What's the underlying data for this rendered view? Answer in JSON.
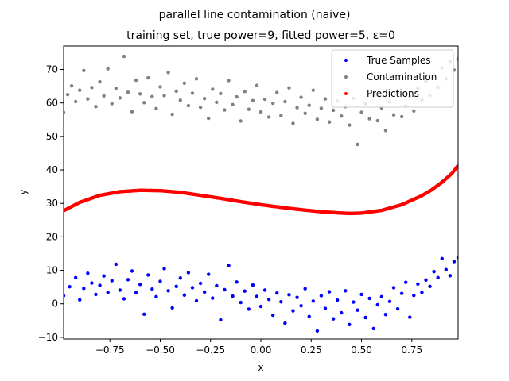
{
  "chart_data": {
    "type": "scatter",
    "title": "parallel line contamination (naive)",
    "subtitle": "training set, true power=9, fitted power=5, ε=0",
    "xlabel": "x",
    "ylabel": "y",
    "xlim": [
      -0.98,
      0.98
    ],
    "ylim": [
      -10.5,
      77
    ],
    "xticks": [
      -0.75,
      -0.5,
      -0.25,
      0.0,
      0.25,
      0.5,
      0.75
    ],
    "xtick_labels": [
      "−0.75",
      "−0.50",
      "−0.25",
      "0.00",
      "0.25",
      "0.50",
      "0.75"
    ],
    "yticks": [
      -10,
      0,
      10,
      20,
      30,
      40,
      50,
      60,
      70
    ],
    "ytick_labels": [
      "−10",
      "0",
      "10",
      "20",
      "30",
      "40",
      "50",
      "60",
      "70"
    ],
    "grid": false,
    "legend_position": "upper-right",
    "series": [
      {
        "name": "True Samples",
        "color": "#0000ff",
        "points": [
          [
            -0.98,
            2.4
          ],
          [
            -0.95,
            5.1
          ],
          [
            -0.92,
            7.8
          ],
          [
            -0.9,
            1.2
          ],
          [
            -0.88,
            4.6
          ],
          [
            -0.86,
            9.1
          ],
          [
            -0.84,
            6.2
          ],
          [
            -0.82,
            2.8
          ],
          [
            -0.8,
            5.5
          ],
          [
            -0.78,
            8.3
          ],
          [
            -0.76,
            3.4
          ],
          [
            -0.74,
            6.9
          ],
          [
            -0.72,
            11.8
          ],
          [
            -0.7,
            4.1
          ],
          [
            -0.68,
            1.5
          ],
          [
            -0.66,
            7.2
          ],
          [
            -0.64,
            9.8
          ],
          [
            -0.62,
            3.3
          ],
          [
            -0.6,
            5.8
          ],
          [
            -0.58,
            -3.1
          ],
          [
            -0.56,
            8.6
          ],
          [
            -0.54,
            4.4
          ],
          [
            -0.52,
            2.1
          ],
          [
            -0.5,
            6.7
          ],
          [
            -0.48,
            10.5
          ],
          [
            -0.46,
            3.9
          ],
          [
            -0.44,
            -1.2
          ],
          [
            -0.42,
            5.2
          ],
          [
            -0.4,
            7.7
          ],
          [
            -0.38,
            2.6
          ],
          [
            -0.36,
            9.3
          ],
          [
            -0.34,
            4.8
          ],
          [
            -0.32,
            0.9
          ],
          [
            -0.3,
            6.1
          ],
          [
            -0.28,
            3.5
          ],
          [
            -0.26,
            8.8
          ],
          [
            -0.24,
            1.7
          ],
          [
            -0.22,
            5.4
          ],
          [
            -0.2,
            -4.8
          ],
          [
            -0.18,
            4.2
          ],
          [
            -0.16,
            11.4
          ],
          [
            -0.14,
            2.3
          ],
          [
            -0.12,
            6.5
          ],
          [
            -0.1,
            0.4
          ],
          [
            -0.08,
            3.8
          ],
          [
            -0.06,
            -1.6
          ],
          [
            -0.04,
            5.6
          ],
          [
            -0.02,
            2.2
          ],
          [
            0.0,
            -0.8
          ],
          [
            0.02,
            4.1
          ],
          [
            0.04,
            1.3
          ],
          [
            0.06,
            -3.4
          ],
          [
            0.08,
            3.2
          ],
          [
            0.1,
            0.6
          ],
          [
            0.12,
            -5.8
          ],
          [
            0.14,
            2.7
          ],
          [
            0.16,
            -2.1
          ],
          [
            0.18,
            1.9
          ],
          [
            0.2,
            -0.6
          ],
          [
            0.22,
            4.5
          ],
          [
            0.24,
            -3.8
          ],
          [
            0.26,
            0.8
          ],
          [
            0.28,
            -8.1
          ],
          [
            0.3,
            2.4
          ],
          [
            0.32,
            -1.4
          ],
          [
            0.34,
            3.6
          ],
          [
            0.36,
            -4.5
          ],
          [
            0.38,
            1.1
          ],
          [
            0.4,
            -2.7
          ],
          [
            0.42,
            3.9
          ],
          [
            0.44,
            -6.2
          ],
          [
            0.46,
            0.5
          ],
          [
            0.48,
            -1.9
          ],
          [
            0.5,
            2.8
          ],
          [
            0.52,
            -4.1
          ],
          [
            0.54,
            1.6
          ],
          [
            0.56,
            -7.4
          ],
          [
            0.58,
            -0.3
          ],
          [
            0.6,
            2.1
          ],
          [
            0.62,
            -3.2
          ],
          [
            0.64,
            0.7
          ],
          [
            0.66,
            4.8
          ],
          [
            0.68,
            -1.5
          ],
          [
            0.7,
            3.1
          ],
          [
            0.72,
            6.4
          ],
          [
            0.74,
            -4.0
          ],
          [
            0.76,
            2.5
          ],
          [
            0.78,
            5.9
          ],
          [
            0.8,
            3.4
          ],
          [
            0.82,
            7.1
          ],
          [
            0.84,
            5.2
          ],
          [
            0.86,
            9.6
          ],
          [
            0.88,
            7.8
          ],
          [
            0.9,
            13.5
          ],
          [
            0.92,
            10.2
          ],
          [
            0.94,
            8.4
          ],
          [
            0.96,
            12.6
          ],
          [
            0.98,
            13.8
          ]
        ]
      },
      {
        "name": "Contamination",
        "color": "#808080",
        "points": [
          [
            -0.98,
            57.2
          ],
          [
            -0.96,
            62.5
          ],
          [
            -0.94,
            65.1
          ],
          [
            -0.92,
            60.4
          ],
          [
            -0.9,
            63.8
          ],
          [
            -0.88,
            69.7
          ],
          [
            -0.86,
            61.2
          ],
          [
            -0.84,
            64.6
          ],
          [
            -0.82,
            58.9
          ],
          [
            -0.8,
            66.3
          ],
          [
            -0.78,
            62.1
          ],
          [
            -0.76,
            70.2
          ],
          [
            -0.74,
            59.8
          ],
          [
            -0.72,
            64.4
          ],
          [
            -0.7,
            61.5
          ],
          [
            -0.68,
            73.9
          ],
          [
            -0.66,
            63.2
          ],
          [
            -0.64,
            57.4
          ],
          [
            -0.62,
            66.8
          ],
          [
            -0.6,
            62.7
          ],
          [
            -0.58,
            60.1
          ],
          [
            -0.56,
            67.5
          ],
          [
            -0.54,
            61.9
          ],
          [
            -0.52,
            58.3
          ],
          [
            -0.5,
            64.8
          ],
          [
            -0.48,
            62.2
          ],
          [
            -0.46,
            69.1
          ],
          [
            -0.44,
            56.6
          ],
          [
            -0.42,
            63.5
          ],
          [
            -0.4,
            60.8
          ],
          [
            -0.38,
            65.9
          ],
          [
            -0.36,
            59.2
          ],
          [
            -0.34,
            62.9
          ],
          [
            -0.32,
            67.2
          ],
          [
            -0.3,
            58.7
          ],
          [
            -0.28,
            61.3
          ],
          [
            -0.26,
            55.4
          ],
          [
            -0.24,
            64.1
          ],
          [
            -0.22,
            60.2
          ],
          [
            -0.2,
            62.8
          ],
          [
            -0.18,
            57.9
          ],
          [
            -0.16,
            66.7
          ],
          [
            -0.14,
            59.5
          ],
          [
            -0.12,
            61.8
          ],
          [
            -0.1,
            54.6
          ],
          [
            -0.08,
            63.4
          ],
          [
            -0.06,
            58.1
          ],
          [
            -0.04,
            60.7
          ],
          [
            -0.02,
            65.2
          ],
          [
            0.0,
            57.3
          ],
          [
            0.02,
            61.1
          ],
          [
            0.04,
            55.8
          ],
          [
            0.06,
            59.9
          ],
          [
            0.08,
            63.1
          ],
          [
            0.1,
            56.2
          ],
          [
            0.12,
            60.4
          ],
          [
            0.14,
            64.5
          ],
          [
            0.16,
            53.9
          ],
          [
            0.18,
            58.6
          ],
          [
            0.2,
            61.7
          ],
          [
            0.22,
            56.9
          ],
          [
            0.24,
            59.3
          ],
          [
            0.26,
            63.8
          ],
          [
            0.28,
            55.1
          ],
          [
            0.3,
            58.4
          ],
          [
            0.32,
            61.2
          ],
          [
            0.34,
            54.3
          ],
          [
            0.36,
            57.8
          ],
          [
            0.38,
            60.6
          ],
          [
            0.4,
            56.1
          ],
          [
            0.42,
            58.9
          ],
          [
            0.44,
            53.4
          ],
          [
            0.46,
            61.4
          ],
          [
            0.48,
            47.6
          ],
          [
            0.5,
            57.2
          ],
          [
            0.52,
            59.8
          ],
          [
            0.54,
            55.3
          ],
          [
            0.56,
            62.1
          ],
          [
            0.58,
            54.7
          ],
          [
            0.6,
            58.5
          ],
          [
            0.62,
            51.8
          ],
          [
            0.64,
            60.3
          ],
          [
            0.66,
            56.4
          ],
          [
            0.68,
            63.6
          ],
          [
            0.7,
            55.9
          ],
          [
            0.72,
            59.1
          ],
          [
            0.74,
            61.8
          ],
          [
            0.76,
            57.6
          ],
          [
            0.78,
            64.2
          ],
          [
            0.8,
            60.9
          ],
          [
            0.82,
            66.4
          ],
          [
            0.84,
            62.3
          ],
          [
            0.86,
            68.1
          ],
          [
            0.88,
            64.7
          ],
          [
            0.9,
            70.5
          ],
          [
            0.92,
            67.2
          ],
          [
            0.94,
            72.4
          ],
          [
            0.96,
            69.8
          ],
          [
            0.98,
            73.1
          ]
        ]
      },
      {
        "name": "Predictions",
        "color": "#ff0000",
        "points": [
          [
            -0.98,
            27.8
          ],
          [
            -0.9,
            30.3
          ],
          [
            -0.8,
            32.4
          ],
          [
            -0.7,
            33.5
          ],
          [
            -0.6,
            33.9
          ],
          [
            -0.5,
            33.8
          ],
          [
            -0.4,
            33.3
          ],
          [
            -0.3,
            32.4
          ],
          [
            -0.2,
            31.5
          ],
          [
            -0.1,
            30.5
          ],
          [
            0.0,
            29.6
          ],
          [
            0.1,
            28.8
          ],
          [
            0.2,
            28.1
          ],
          [
            0.3,
            27.5
          ],
          [
            0.4,
            27.1
          ],
          [
            0.45,
            27.0
          ],
          [
            0.5,
            27.1
          ],
          [
            0.6,
            27.9
          ],
          [
            0.7,
            29.6
          ],
          [
            0.8,
            32.3
          ],
          [
            0.85,
            34.1
          ],
          [
            0.9,
            36.3
          ],
          [
            0.95,
            39.0
          ],
          [
            0.98,
            41.3
          ]
        ]
      }
    ]
  }
}
